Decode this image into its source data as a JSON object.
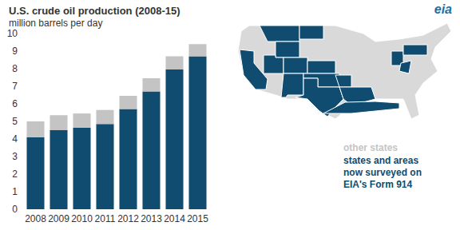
{
  "chart_data": {
    "type": "bar",
    "title": "U.S. crude oil production (2008-15)",
    "subtitle": "million barrels per day",
    "categories": [
      "2008",
      "2009",
      "2010",
      "2011",
      "2012",
      "2013",
      "2014",
      "2015"
    ],
    "series": [
      {
        "name": "states and areas now surveyed on EIA's Form 914",
        "color": "#0f4c6f",
        "values": [
          4.1,
          4.5,
          4.65,
          4.85,
          5.7,
          6.7,
          7.95,
          8.7
        ]
      },
      {
        "name": "other states",
        "color": "#c4c4c4",
        "values": [
          0.9,
          0.85,
          0.8,
          0.8,
          0.75,
          0.75,
          0.75,
          0.7
        ]
      }
    ],
    "stacked": true,
    "ylim": [
      0,
      10
    ],
    "yticks": [
      0,
      1,
      2,
      3,
      4,
      5,
      6,
      7,
      8,
      9,
      10
    ],
    "grid": false,
    "legend": "bottom right",
    "annotations": [
      "eia"
    ]
  }
}
